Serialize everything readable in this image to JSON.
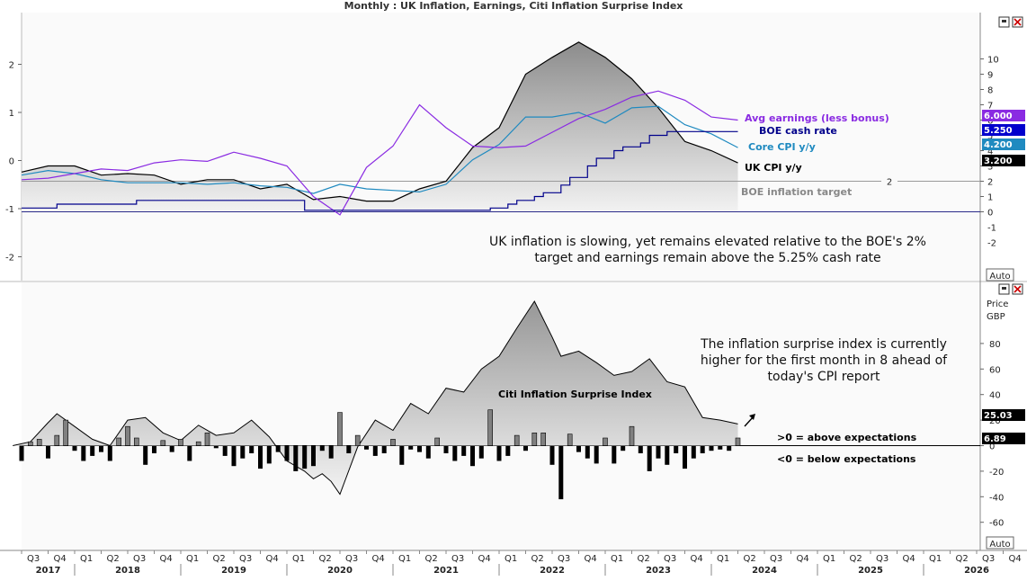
{
  "window": {
    "title": "Monthly : UK Inflation, Earnings, Citi Inflation Surprise Index",
    "auto_label": "Auto"
  },
  "chart_data": [
    {
      "type": "line",
      "panel": "top",
      "x_start": "2017-07",
      "x_end": "2026-12",
      "right_axis": {
        "ylim": [
          -1,
          11
        ],
        "ticks": [
          0,
          1,
          2,
          3,
          4,
          5,
          6,
          7,
          8,
          9,
          10
        ]
      },
      "left_axis": {
        "ylim": [
          -2.5,
          2.9
        ],
        "ticks": [
          -2,
          -1,
          0,
          1,
          2
        ]
      },
      "series": [
        {
          "name": "UK CPI y/y",
          "color": "#000000",
          "area": true,
          "axis": "right",
          "x": [
            "2017-07",
            "2017-10",
            "2018-01",
            "2018-04",
            "2018-07",
            "2018-10",
            "2019-01",
            "2019-04",
            "2019-07",
            "2019-10",
            "2020-01",
            "2020-04",
            "2020-07",
            "2020-10",
            "2021-01",
            "2021-04",
            "2021-07",
            "2021-10",
            "2022-01",
            "2022-04",
            "2022-07",
            "2022-10",
            "2023-01",
            "2023-04",
            "2023-07",
            "2023-10",
            "2024-01",
            "2024-04"
          ],
          "values": [
            2.6,
            3.0,
            3.0,
            2.4,
            2.5,
            2.4,
            1.8,
            2.1,
            2.1,
            1.5,
            1.8,
            0.8,
            1.0,
            0.7,
            0.7,
            1.5,
            2.0,
            4.2,
            5.5,
            9.0,
            10.1,
            11.1,
            10.1,
            8.7,
            6.8,
            4.6,
            4.0,
            3.2
          ]
        },
        {
          "name": "Core CPI y/y",
          "color": "#1f8ac0",
          "axis": "right",
          "x": [
            "2017-07",
            "2017-10",
            "2018-01",
            "2018-04",
            "2018-07",
            "2018-10",
            "2019-01",
            "2019-04",
            "2019-07",
            "2019-10",
            "2020-01",
            "2020-04",
            "2020-07",
            "2020-10",
            "2021-01",
            "2021-04",
            "2021-07",
            "2021-10",
            "2022-01",
            "2022-04",
            "2022-07",
            "2022-10",
            "2023-01",
            "2023-04",
            "2023-07",
            "2023-10",
            "2024-01",
            "2024-04"
          ],
          "values": [
            2.4,
            2.7,
            2.5,
            2.1,
            1.9,
            1.9,
            1.9,
            1.8,
            1.9,
            1.7,
            1.6,
            1.2,
            1.8,
            1.5,
            1.4,
            1.3,
            1.8,
            3.4,
            4.4,
            6.2,
            6.2,
            6.5,
            5.8,
            6.8,
            6.9,
            5.7,
            5.1,
            4.2
          ]
        },
        {
          "name": "Avg earnings (less bonus)",
          "color": "#8a2be2",
          "axis": "right",
          "x": [
            "2017-07",
            "2017-10",
            "2018-01",
            "2018-04",
            "2018-07",
            "2018-10",
            "2019-01",
            "2019-04",
            "2019-07",
            "2019-10",
            "2020-01",
            "2020-04",
            "2020-07",
            "2020-10",
            "2021-01",
            "2021-04",
            "2021-07",
            "2021-10",
            "2022-01",
            "2022-04",
            "2022-07",
            "2022-10",
            "2023-01",
            "2023-04",
            "2023-07",
            "2023-10",
            "2024-01",
            "2024-04"
          ],
          "values": [
            2.1,
            2.2,
            2.5,
            2.8,
            2.7,
            3.2,
            3.4,
            3.3,
            3.9,
            3.5,
            3.0,
            1.0,
            -0.2,
            2.9,
            4.3,
            7.0,
            5.5,
            4.3,
            4.2,
            4.3,
            5.2,
            6.1,
            6.7,
            7.5,
            7.9,
            7.3,
            6.2,
            6.0
          ]
        },
        {
          "name": "BOE cash rate",
          "color": "#00008b",
          "axis": "right",
          "step": true,
          "x": [
            "2017-07",
            "2017-11",
            "2018-08",
            "2019-01",
            "2019-07",
            "2020-03",
            "2020-04",
            "2021-07",
            "2021-12",
            "2022-02",
            "2022-03",
            "2022-05",
            "2022-06",
            "2022-08",
            "2022-09",
            "2022-11",
            "2022-12",
            "2023-02",
            "2023-03",
            "2023-05",
            "2023-06",
            "2023-08",
            "2024-04"
          ],
          "values": [
            0.25,
            0.5,
            0.75,
            0.75,
            0.75,
            0.1,
            0.1,
            0.1,
            0.25,
            0.5,
            0.75,
            1.0,
            1.25,
            1.75,
            2.25,
            3.0,
            3.5,
            4.0,
            4.25,
            4.5,
            5.0,
            5.25,
            5.25
          ]
        }
      ],
      "reference_line": {
        "name": "BOE inflation target",
        "value": 2,
        "label": "2"
      },
      "badges": [
        {
          "label": "6.000",
          "color": "#8a2be2"
        },
        {
          "label": "5.250",
          "color": "#0000cd"
        },
        {
          "label": "4.200",
          "color": "#1f8ac0"
        },
        {
          "label": "3.200",
          "color": "#000000"
        }
      ],
      "annotation_lines": [
        "UK inflation is slowing, yet remains elevated relative to the BOE's 2%",
        "target and earnings remain above the 5.25% cash rate"
      ]
    },
    {
      "type": "bar",
      "panel": "bottom",
      "ylabel": "Price",
      "unit": "GBP",
      "ylim": [
        -70,
        115
      ],
      "ticks": [
        -60,
        -40,
        -20,
        0,
        20,
        40,
        60,
        80
      ],
      "area_series": {
        "name": "Citi Inflation Surprise Index",
        "x": [
          "2017-06",
          "2017-08",
          "2017-10",
          "2017-11",
          "2018-01",
          "2018-03",
          "2018-05",
          "2018-07",
          "2018-09",
          "2018-11",
          "2019-01",
          "2019-03",
          "2019-05",
          "2019-07",
          "2019-09",
          "2019-11",
          "2020-01",
          "2020-03",
          "2020-04",
          "2020-05",
          "2020-06",
          "2020-07",
          "2020-09",
          "2020-11",
          "2021-01",
          "2021-03",
          "2021-05",
          "2021-07",
          "2021-09",
          "2021-11",
          "2022-01",
          "2022-03",
          "2022-05",
          "2022-07",
          "2022-08",
          "2022-10",
          "2022-12",
          "2023-02",
          "2023-04",
          "2023-06",
          "2023-08",
          "2023-10",
          "2023-12",
          "2024-02",
          "2024-04"
        ],
        "values": [
          0,
          3,
          18,
          25,
          15,
          5,
          0,
          20,
          22,
          10,
          4,
          16,
          8,
          10,
          20,
          7,
          -12,
          -20,
          -26,
          -22,
          -28,
          -38,
          -1,
          20,
          12,
          33,
          25,
          45,
          42,
          60,
          70,
          92,
          113,
          85,
          70,
          74,
          65,
          55,
          58,
          68,
          50,
          46,
          22,
          20,
          17
        ]
      },
      "bars": {
        "x": [
          "2017-07",
          "2017-08",
          "2017-09",
          "2017-10",
          "2017-11",
          "2017-12",
          "2018-01",
          "2018-02",
          "2018-03",
          "2018-04",
          "2018-05",
          "2018-06",
          "2018-07",
          "2018-08",
          "2018-09",
          "2018-10",
          "2018-11",
          "2018-12",
          "2019-01",
          "2019-02",
          "2019-03",
          "2019-04",
          "2019-05",
          "2019-06",
          "2019-07",
          "2019-08",
          "2019-09",
          "2019-10",
          "2019-11",
          "2019-12",
          "2020-01",
          "2020-02",
          "2020-03",
          "2020-04",
          "2020-05",
          "2020-06",
          "2020-07",
          "2020-08",
          "2020-09",
          "2020-10",
          "2020-11",
          "2020-12",
          "2021-01",
          "2021-02",
          "2021-03",
          "2021-04",
          "2021-05",
          "2021-06",
          "2021-07",
          "2021-08",
          "2021-09",
          "2021-10",
          "2021-11",
          "2021-12",
          "2022-01",
          "2022-02",
          "2022-03",
          "2022-04",
          "2022-05",
          "2022-06",
          "2022-07",
          "2022-08",
          "2022-09",
          "2022-10",
          "2022-11",
          "2022-12",
          "2023-01",
          "2023-02",
          "2023-03",
          "2023-04",
          "2023-05",
          "2023-06",
          "2023-07",
          "2023-08",
          "2023-09",
          "2023-10",
          "2023-11",
          "2023-12",
          "2024-01",
          "2024-02",
          "2024-03",
          "2024-04"
        ],
        "values": [
          -12,
          3,
          5,
          -10,
          8,
          20,
          -4,
          -12,
          -8,
          -5,
          -12,
          6,
          15,
          6,
          -15,
          -6,
          4,
          -5,
          5,
          -12,
          3,
          10,
          -2,
          -8,
          -16,
          -10,
          -6,
          -18,
          -14,
          -5,
          -12,
          -20,
          -18,
          -16,
          -4,
          -10,
          26,
          -6,
          8,
          -3,
          -8,
          -6,
          5,
          -15,
          -3,
          -5,
          -10,
          6,
          -6,
          -12,
          -8,
          -16,
          -10,
          28,
          -12,
          -8,
          8,
          -4,
          10,
          10,
          -15,
          -42,
          9,
          -5,
          -10,
          -14,
          6,
          -14,
          -4,
          15,
          -6,
          -20,
          -10,
          -15,
          -6,
          -18,
          -10,
          -6,
          -4,
          -3,
          -4,
          6
        ]
      },
      "badges": [
        {
          "label": "25.03",
          "color": "#000000"
        },
        {
          "label": "6.89",
          "color": "#000000"
        }
      ],
      "labels": [
        ">0 = above expectations",
        "<0 = below expectations"
      ],
      "annotation_lines": [
        "The inflation surprise index is currently",
        "higher for the first month in 8 ahead of",
        "today's CPI report"
      ],
      "x_quarters": [
        "Q3",
        "Q4",
        "Q1",
        "Q2",
        "Q3",
        "Q4",
        "Q1",
        "Q2",
        "Q3",
        "Q4",
        "Q1",
        "Q2",
        "Q3",
        "Q4",
        "Q1",
        "Q2",
        "Q3",
        "Q4",
        "Q1",
        "Q2",
        "Q3",
        "Q4",
        "Q1",
        "Q2",
        "Q3",
        "Q4",
        "Q1",
        "Q2",
        "Q3",
        "Q4",
        "Q1",
        "Q2",
        "Q3",
        "Q4",
        "Q1",
        "Q2",
        "Q3",
        "Q4"
      ],
      "x_years": [
        "2017",
        "2018",
        "2019",
        "2020",
        "2021",
        "2022",
        "2023",
        "2024",
        "2025",
        "2026"
      ]
    }
  ]
}
